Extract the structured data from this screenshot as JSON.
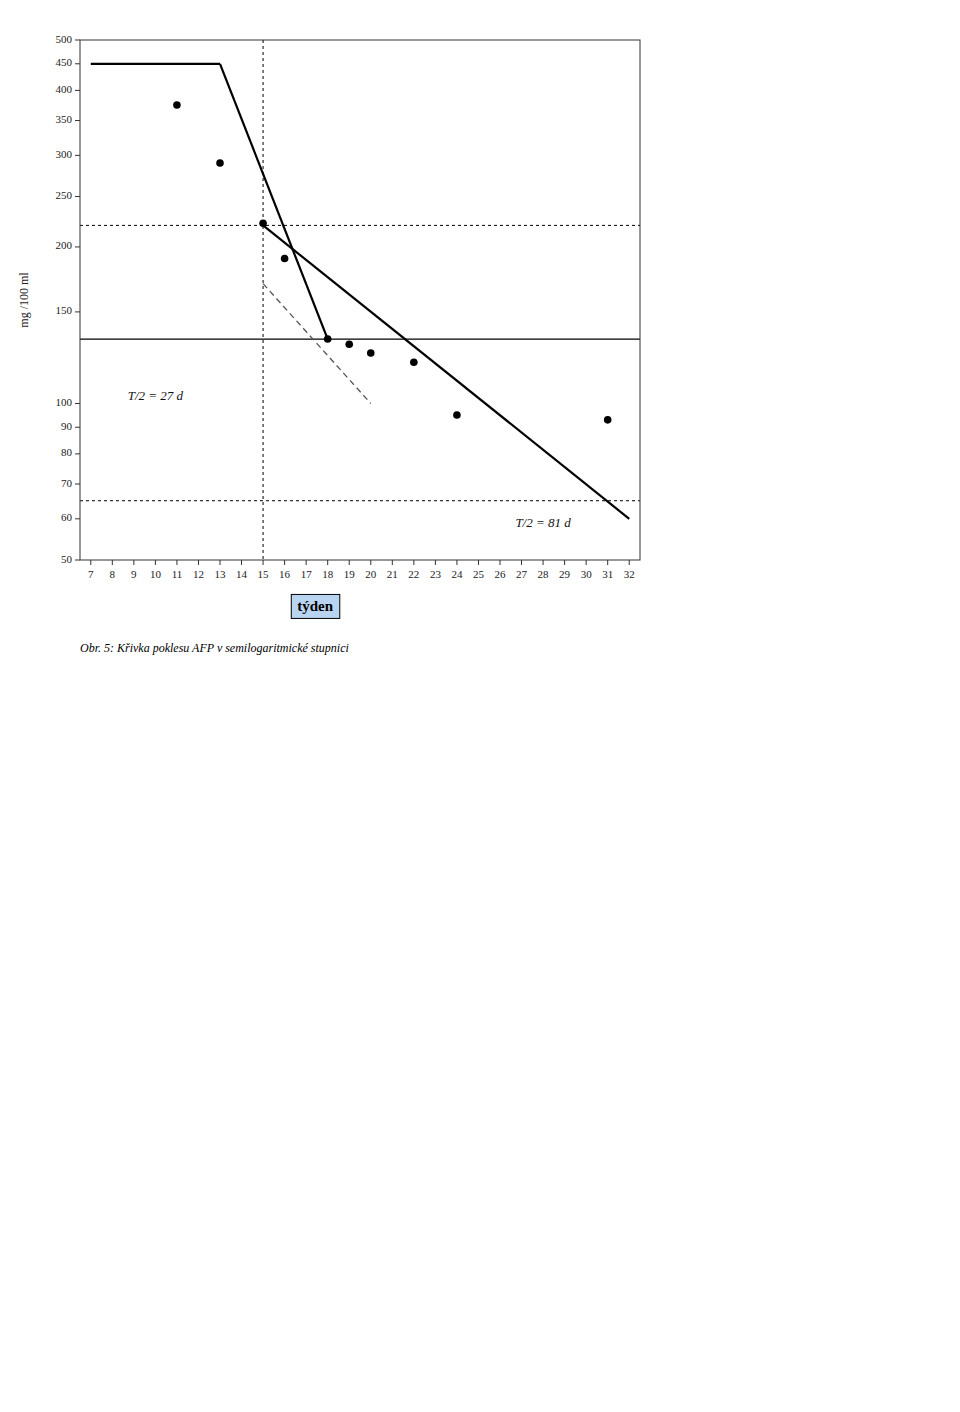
{
  "chart_data": {
    "type": "line",
    "ylabel": "mg /100 ml",
    "xlabel": "týden",
    "xlabel_color": "#b8d4f0",
    "caption": "Obr. 5: Křivka poklesu AFP v semilogaritmické stupnici",
    "log": "y",
    "grid": false,
    "xlim": [
      6.5,
      32.5
    ],
    "ylim": [
      50,
      500
    ],
    "xticks": [
      7,
      8,
      9,
      10,
      11,
      12,
      13,
      14,
      15,
      16,
      17,
      18,
      19,
      20,
      21,
      22,
      23,
      24,
      25,
      26,
      27,
      28,
      29,
      30,
      31,
      32
    ],
    "yticks": [
      50,
      60,
      70,
      80,
      90,
      100,
      150,
      200,
      250,
      300,
      350,
      400,
      450,
      500
    ],
    "series": [
      {
        "type": "line",
        "color": "#000000",
        "line_style": "solid",
        "x": [
          7,
          13
        ],
        "values": [
          450,
          450
        ]
      },
      {
        "type": "line",
        "color": "#000000",
        "line_style": "solid",
        "x": [
          13,
          18
        ],
        "values": [
          450,
          133
        ]
      },
      {
        "type": "line",
        "color": "#000000",
        "line_style": "solid",
        "x": [
          15,
          32
        ],
        "values": [
          220,
          60
        ]
      },
      {
        "type": "line",
        "color": "#555555",
        "line_style": "dashed",
        "x": [
          15,
          20
        ],
        "values": [
          170,
          100
        ]
      },
      {
        "type": "scatter",
        "color": "#000000",
        "marker": "circle",
        "x": [
          11,
          13,
          15,
          16,
          18,
          19,
          20,
          22,
          24,
          31
        ],
        "values": [
          375,
          290,
          222,
          190,
          133,
          130,
          125,
          120,
          95,
          93
        ]
      }
    ],
    "hlines": [
      {
        "value": 220,
        "line_style": "dotted",
        "color": "#000000"
      },
      {
        "value": 65,
        "line_style": "dotted",
        "color": "#000000"
      },
      {
        "value": 133,
        "line_style": "solid",
        "color": "#000000"
      }
    ],
    "vlines": [
      {
        "value": 15,
        "line_style": "dotted",
        "color": "#000000"
      }
    ],
    "annotations": [
      {
        "text": "T/2 = 27 d",
        "x": 10,
        "y": 103
      },
      {
        "text": "T/2 = 81 d",
        "x": 28,
        "y": 57
      }
    ]
  }
}
